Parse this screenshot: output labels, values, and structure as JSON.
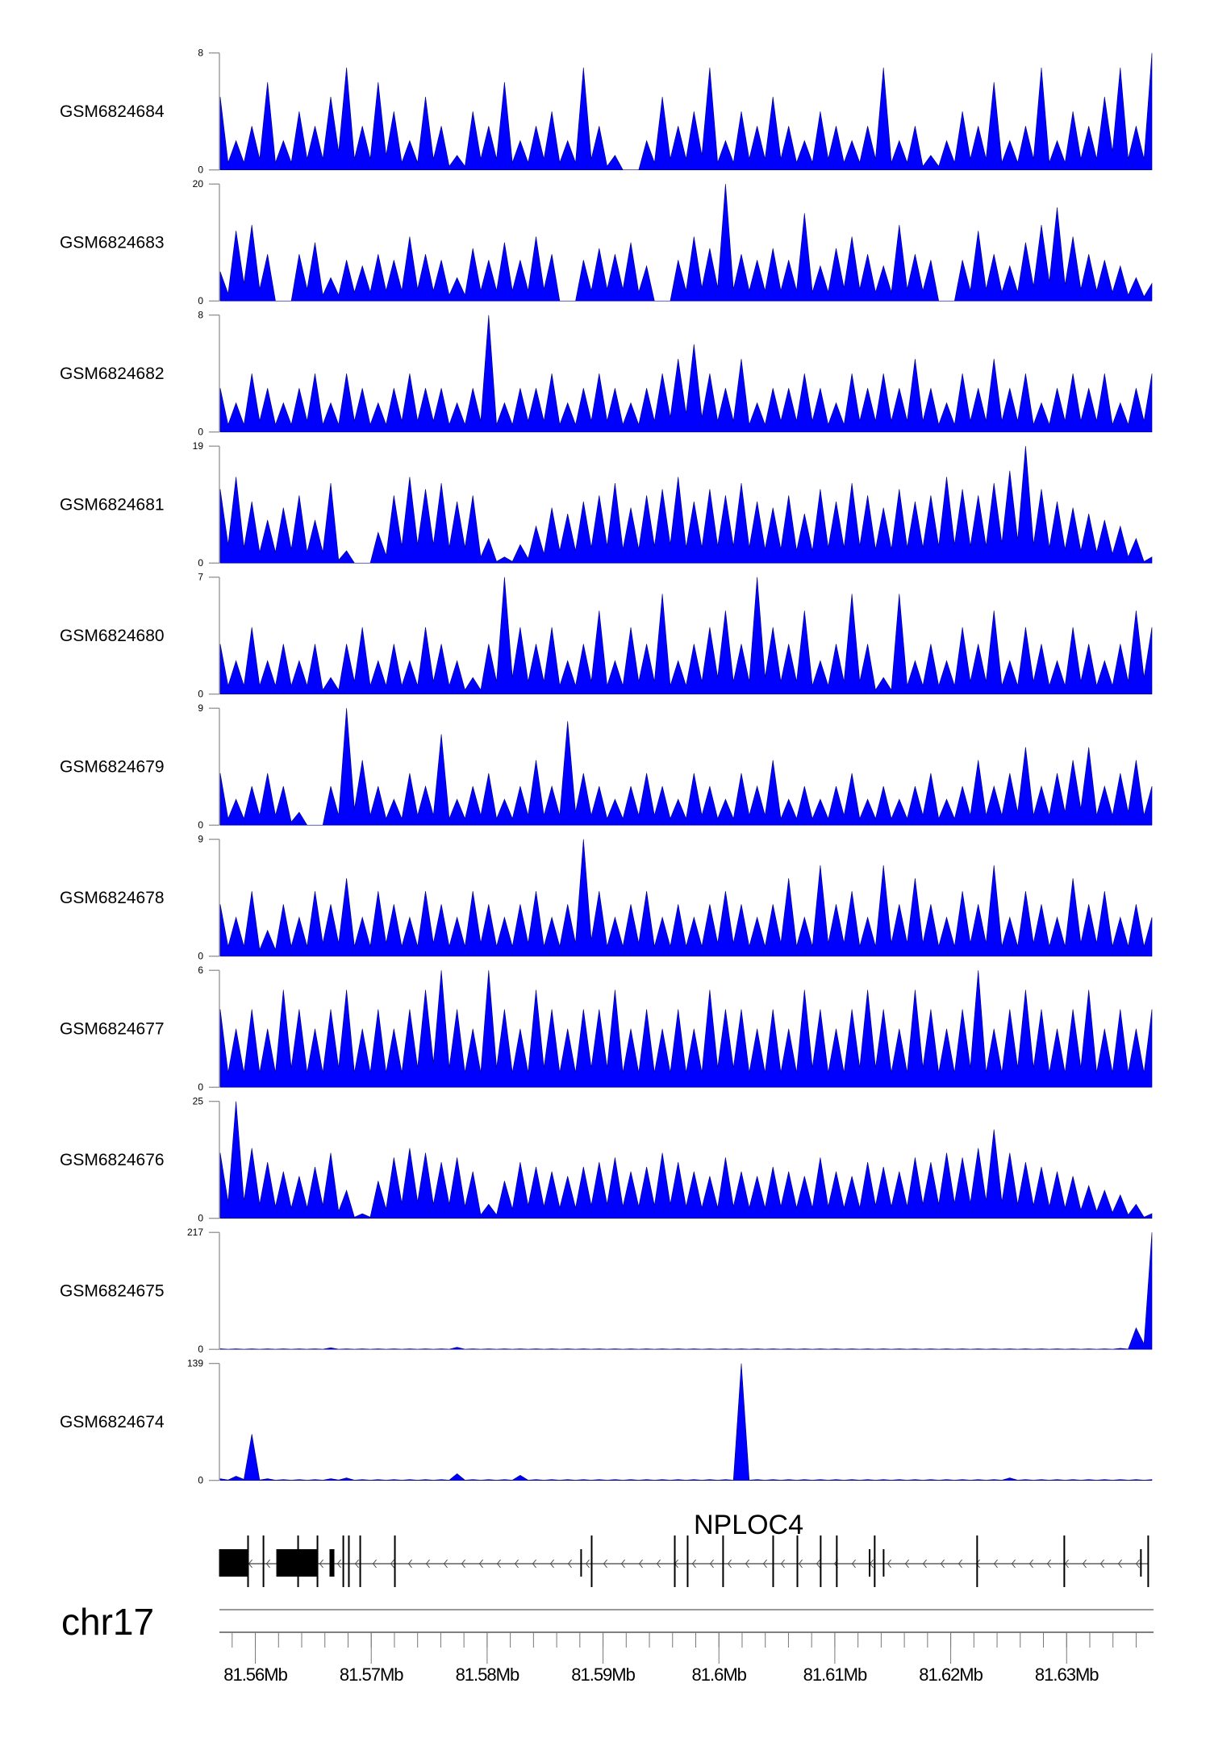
{
  "chart_data": {
    "type": "area",
    "chromosome": "chr17",
    "gene_label": "NPLOC4",
    "xlim_mb": [
      81.5569,
      81.6375
    ],
    "x_tick_labels": [
      "81.56Mb",
      "81.57Mb",
      "81.58Mb",
      "81.59Mb",
      "81.6Mb",
      "81.61Mb",
      "81.62Mb",
      "81.63Mb"
    ],
    "x_tick_values": [
      81.56,
      81.57,
      81.58,
      81.59,
      81.6,
      81.61,
      81.62,
      81.63
    ],
    "color": "#0000ff",
    "tracks": [
      {
        "name": "GSM6824684",
        "ymax": 8,
        "ymin": 0,
        "values": [
          5,
          2,
          3,
          6,
          2,
          4,
          3,
          5,
          7,
          3,
          6,
          4,
          2,
          5,
          3,
          1,
          4,
          3,
          6,
          2,
          3,
          4,
          2,
          7,
          3,
          1,
          0,
          2,
          5,
          3,
          4,
          7,
          2,
          4,
          3,
          5,
          3,
          2,
          4,
          3,
          2,
          3,
          7,
          2,
          3,
          1,
          2,
          4,
          3,
          6,
          2,
          3,
          7,
          2,
          4,
          3,
          5,
          7,
          3,
          8
        ]
      },
      {
        "name": "GSM6824683",
        "ymax": 20,
        "ymin": 0,
        "values": [
          5,
          12,
          13,
          8,
          0,
          8,
          10,
          4,
          7,
          6,
          8,
          7,
          11,
          8,
          7,
          4,
          9,
          7,
          10,
          7,
          11,
          8,
          0,
          7,
          9,
          8,
          10,
          6,
          0,
          7,
          11,
          9,
          20,
          8,
          7,
          9,
          7,
          15,
          6,
          9,
          11,
          8,
          6,
          13,
          8,
          7,
          0,
          7,
          12,
          8,
          6,
          10,
          13,
          16,
          11,
          8,
          7,
          6,
          4,
          3
        ]
      },
      {
        "name": "GSM6824682",
        "ymax": 8,
        "ymin": 0,
        "values": [
          3,
          2,
          4,
          3,
          2,
          3,
          4,
          2,
          4,
          3,
          2,
          3,
          4,
          3,
          3,
          2,
          3,
          8,
          2,
          3,
          3,
          4,
          2,
          3,
          4,
          3,
          2,
          3,
          4,
          5,
          6,
          4,
          3,
          5,
          2,
          3,
          3,
          4,
          3,
          2,
          4,
          3,
          4,
          3,
          5,
          3,
          2,
          4,
          3,
          5,
          3,
          4,
          2,
          3,
          4,
          3,
          4,
          2,
          3,
          4
        ]
      },
      {
        "name": "GSM6824681",
        "ymax": 19,
        "ymin": 0,
        "values": [
          12,
          14,
          10,
          7,
          9,
          11,
          7,
          13,
          2,
          0,
          5,
          11,
          14,
          12,
          13,
          10,
          11,
          4,
          1,
          3,
          6,
          9,
          8,
          10,
          11,
          13,
          9,
          11,
          12,
          14,
          10,
          12,
          11,
          13,
          10,
          9,
          11,
          8,
          12,
          10,
          13,
          11,
          9,
          12,
          10,
          11,
          14,
          12,
          11,
          13,
          15,
          19,
          12,
          10,
          9,
          8,
          7,
          6,
          4,
          1
        ]
      },
      {
        "name": "GSM6824680",
        "ymax": 7,
        "ymin": 0,
        "values": [
          3,
          2,
          4,
          2,
          3,
          2,
          3,
          1,
          3,
          4,
          2,
          3,
          2,
          4,
          3,
          2,
          1,
          3,
          7,
          4,
          3,
          4,
          2,
          3,
          5,
          2,
          4,
          3,
          6,
          2,
          3,
          4,
          5,
          3,
          7,
          4,
          3,
          5,
          2,
          3,
          6,
          3,
          1,
          6,
          2,
          3,
          2,
          4,
          3,
          5,
          2,
          4,
          3,
          2,
          4,
          3,
          2,
          3,
          5,
          4
        ]
      },
      {
        "name": "GSM6824679",
        "ymax": 9,
        "ymin": 0,
        "values": [
          4,
          2,
          3,
          4,
          3,
          1,
          0,
          3,
          9,
          5,
          3,
          2,
          4,
          3,
          7,
          2,
          3,
          4,
          2,
          3,
          5,
          3,
          8,
          4,
          3,
          2,
          3,
          4,
          3,
          2,
          4,
          3,
          2,
          4,
          3,
          5,
          2,
          3,
          2,
          3,
          4,
          2,
          3,
          2,
          3,
          4,
          2,
          3,
          5,
          3,
          4,
          6,
          3,
          4,
          5,
          6,
          3,
          4,
          5,
          3
        ]
      },
      {
        "name": "GSM6824678",
        "ymax": 9,
        "ymin": 0,
        "values": [
          4,
          3,
          5,
          2,
          4,
          3,
          5,
          4,
          6,
          3,
          5,
          4,
          3,
          5,
          4,
          3,
          5,
          4,
          3,
          4,
          5,
          3,
          4,
          9,
          5,
          3,
          4,
          5,
          3,
          4,
          3,
          4,
          5,
          4,
          3,
          4,
          6,
          3,
          7,
          4,
          5,
          3,
          7,
          4,
          6,
          4,
          3,
          5,
          4,
          7,
          3,
          5,
          4,
          3,
          6,
          4,
          5,
          3,
          4,
          3
        ]
      },
      {
        "name": "GSM6824677",
        "ymax": 6,
        "ymin": 0,
        "values": [
          4,
          3,
          4,
          3,
          5,
          4,
          3,
          4,
          5,
          3,
          4,
          3,
          4,
          5,
          6,
          4,
          3,
          6,
          4,
          3,
          5,
          4,
          3,
          4,
          4,
          5,
          3,
          4,
          3,
          4,
          3,
          5,
          4,
          4,
          3,
          4,
          3,
          5,
          4,
          3,
          4,
          5,
          4,
          3,
          5,
          4,
          3,
          4,
          6,
          3,
          4,
          5,
          4,
          3,
          4,
          5,
          3,
          4,
          3,
          4
        ]
      },
      {
        "name": "GSM6824676",
        "ymax": 25,
        "ymin": 0,
        "values": [
          14,
          25,
          15,
          12,
          10,
          9,
          11,
          14,
          6,
          1,
          8,
          13,
          15,
          14,
          12,
          13,
          10,
          3,
          8,
          12,
          11,
          10,
          9,
          11,
          12,
          13,
          10,
          11,
          14,
          12,
          10,
          9,
          13,
          10,
          9,
          11,
          10,
          9,
          13,
          10,
          9,
          12,
          11,
          10,
          13,
          12,
          14,
          13,
          15,
          19,
          14,
          12,
          11,
          10,
          9,
          7,
          6,
          5,
          3,
          1
        ]
      },
      {
        "name": "GSM6824675",
        "ymax": 217,
        "ymin": 0,
        "values": [
          1,
          1,
          1,
          1,
          1,
          1,
          1,
          3,
          1,
          1,
          1,
          1,
          1,
          1,
          1,
          4,
          1,
          1,
          1,
          1,
          1,
          1,
          1,
          1,
          1,
          1,
          1,
          1,
          1,
          1,
          1,
          1,
          1,
          1,
          1,
          1,
          1,
          1,
          1,
          1,
          1,
          1,
          1,
          1,
          1,
          1,
          1,
          1,
          1,
          1,
          1,
          1,
          1,
          1,
          1,
          1,
          1,
          2,
          40,
          217
        ]
      },
      {
        "name": "GSM6824674",
        "ymax": 139,
        "ymin": 0,
        "values": [
          2,
          5,
          55,
          2,
          1,
          1,
          1,
          2,
          3,
          1,
          1,
          1,
          1,
          1,
          1,
          8,
          1,
          1,
          1,
          6,
          1,
          1,
          1,
          1,
          1,
          1,
          1,
          1,
          1,
          1,
          1,
          1,
          1,
          139,
          1,
          1,
          1,
          1,
          1,
          1,
          1,
          1,
          1,
          1,
          1,
          1,
          1,
          1,
          1,
          1,
          3,
          1,
          1,
          1,
          1,
          1,
          1,
          1,
          1,
          1
        ]
      }
    ],
    "gene_model": {
      "strand": "-",
      "start_mb": 81.55687,
      "end_mb": 81.63704,
      "exon_blocks": [
        [
          81.55687,
          81.55937
        ],
        [
          81.56181,
          81.56536
        ],
        [
          81.5664,
          81.56682
        ]
      ],
      "exon_lines_tall": [
        81.55937,
        81.5607,
        81.56369,
        81.56536,
        81.56759,
        81.56807,
        81.56905,
        81.57204,
        81.58902,
        81.59619,
        81.5973,
        81.60036,
        81.60468,
        81.60677,
        81.60878,
        81.61017,
        81.61344,
        81.62228,
        81.6298,
        81.63704
      ],
      "exon_lines_short": [
        81.58811,
        81.613,
        81.61421,
        81.63641
      ]
    }
  }
}
